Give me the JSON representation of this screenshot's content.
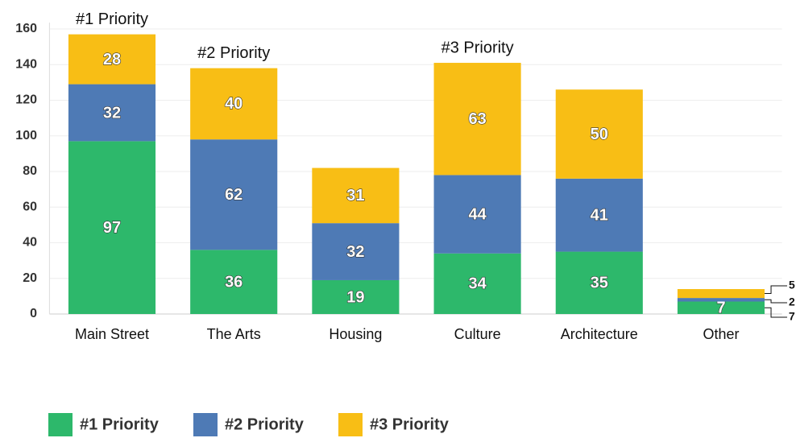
{
  "chart_data": {
    "type": "stacked_bar",
    "categories": [
      "Main Street",
      "The Arts",
      "Housing",
      "Culture",
      "Architecture",
      "Other"
    ],
    "series": [
      {
        "name": "#1 Priority",
        "color": "#2db86b",
        "values": [
          97,
          36,
          19,
          34,
          35,
          7
        ]
      },
      {
        "name": "#2 Priority",
        "color": "#4e7ab5",
        "values": [
          32,
          62,
          32,
          44,
          41,
          2
        ]
      },
      {
        "name": "#3 Priority",
        "color": "#f8be15",
        "values": [
          28,
          40,
          31,
          63,
          50,
          5
        ]
      }
    ],
    "annotations": [
      "#1 Priority",
      "#2 Priority",
      "#3 Priority"
    ],
    "ylim": [
      0,
      160
    ],
    "yticks": [
      0,
      20,
      40,
      60,
      80,
      100,
      120,
      140,
      160
    ],
    "grid": true,
    "legend": "bottom"
  }
}
